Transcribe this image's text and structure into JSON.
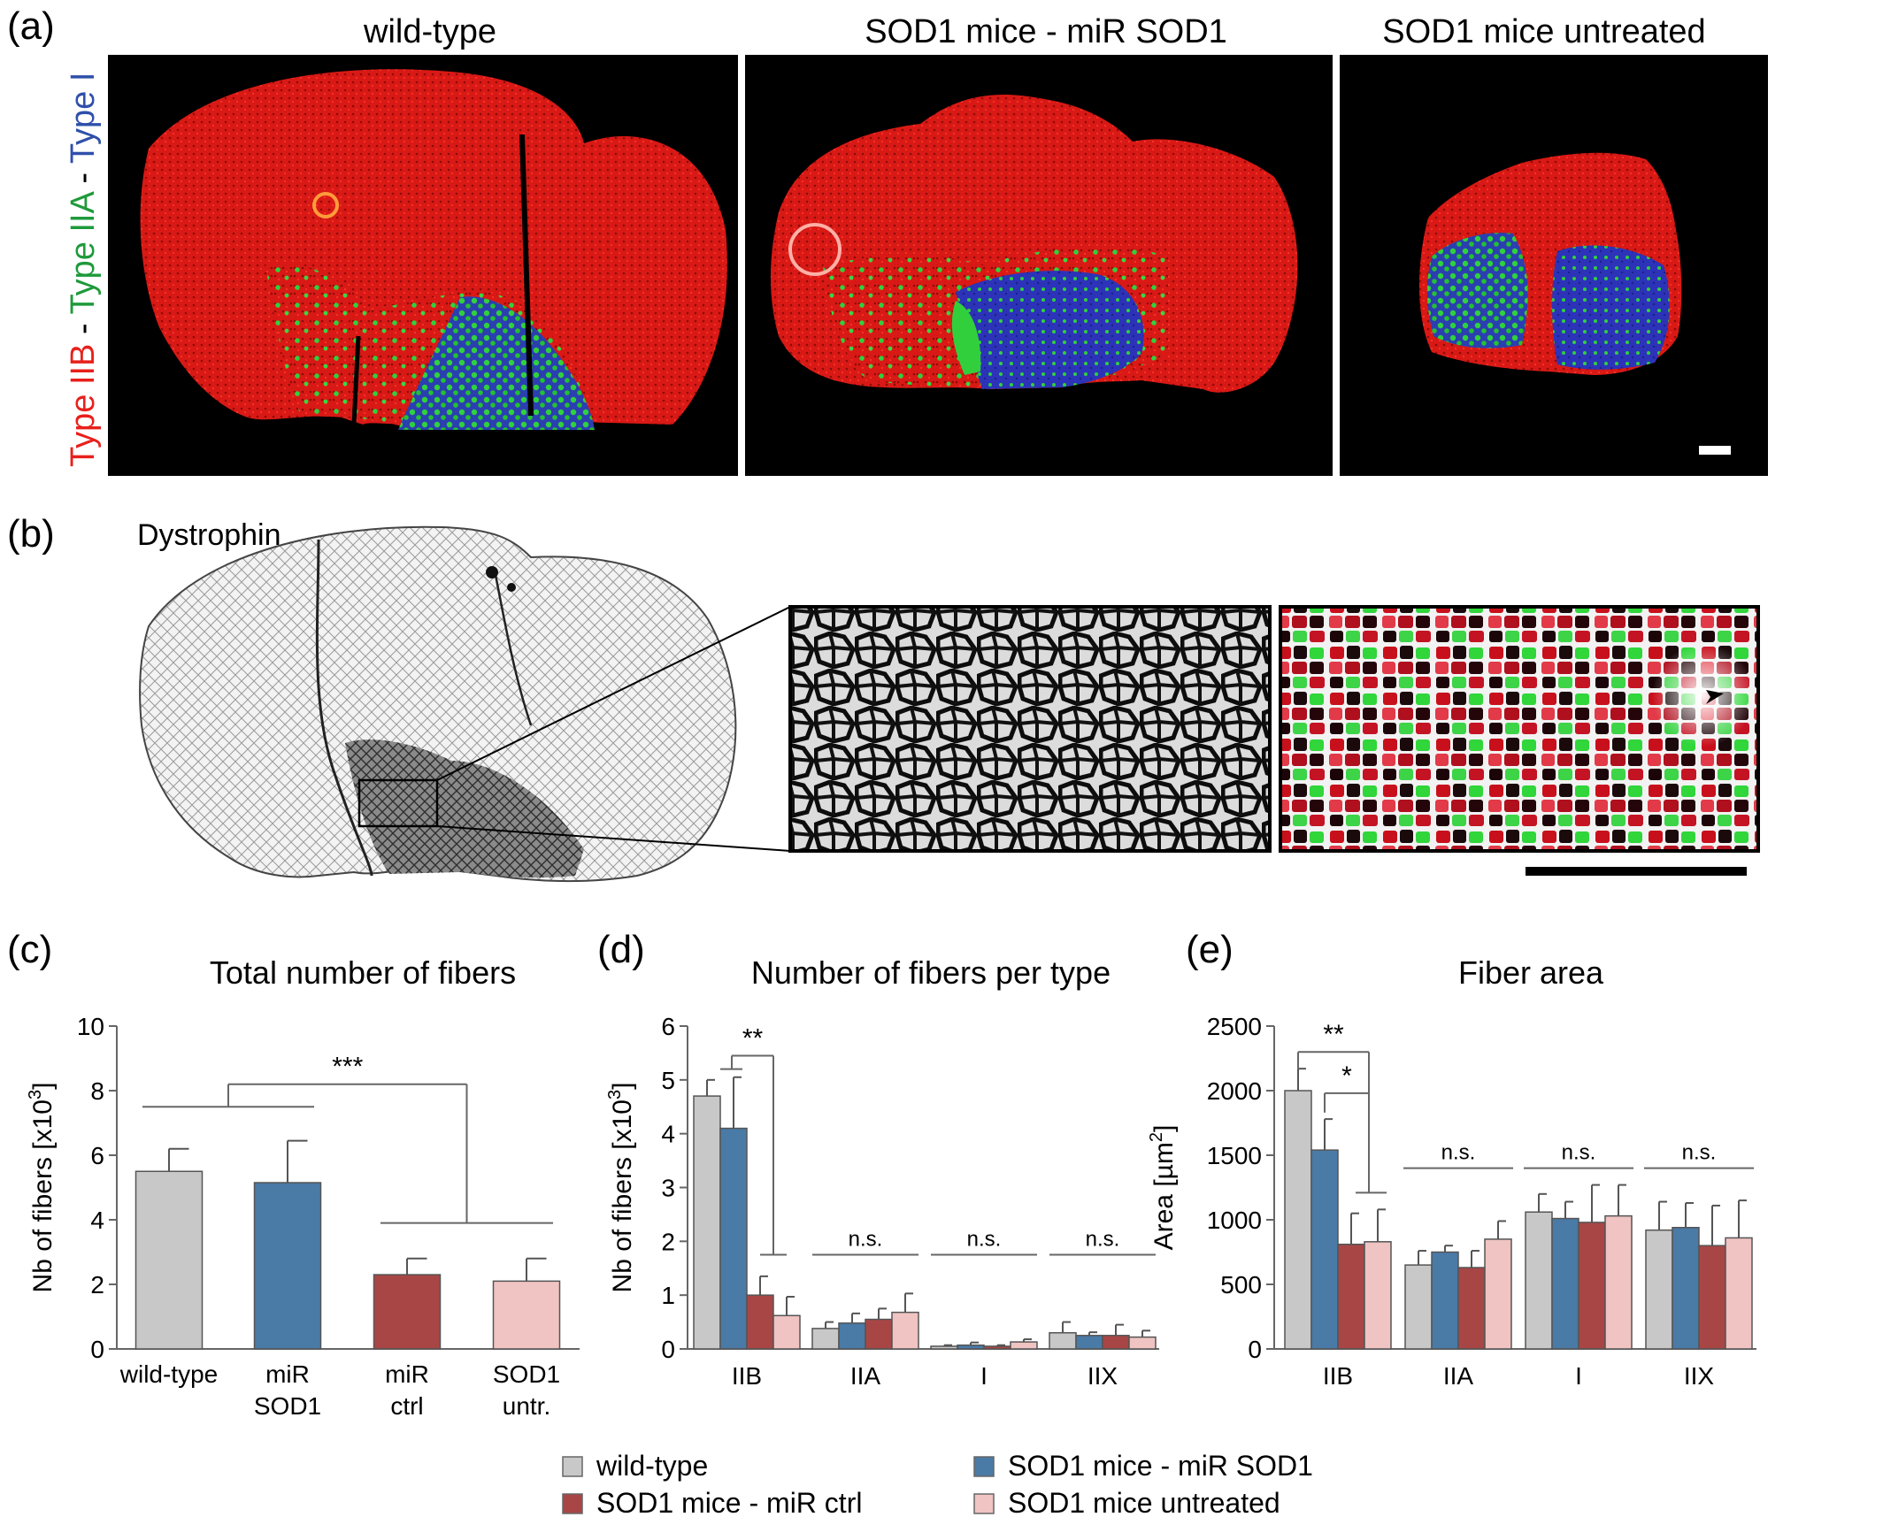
{
  "panels": {
    "a": {
      "label": "(a)",
      "side_label": {
        "iib": "Type IIB",
        "sep1": " - ",
        "iia": "Type IIA",
        "sep2": " - ",
        "i": "Type I"
      },
      "titles": [
        "wild-type",
        "SOD1 mice - miR SOD1",
        "SOD1 mice untreated"
      ]
    },
    "b": {
      "label": "(b)",
      "title": "Dystrophin"
    },
    "c": {
      "label": "(c)",
      "title": "Total number of fibers"
    },
    "d": {
      "label": "(d)",
      "title": "Number of fibers per type"
    },
    "e": {
      "label": "(e)",
      "title": "Fiber area"
    }
  },
  "colors": {
    "wild_type": "#c8c8c8",
    "mir_sod1": "#4a7aa6",
    "mir_ctrl": "#a84646",
    "untreated": "#efc4c2",
    "type_iib": "#e8201b",
    "type_iia": "#1e9a3a",
    "type_i": "#2f4faa"
  },
  "legend": [
    {
      "label": "wild-type",
      "color": "#c8c8c8"
    },
    {
      "label": "SOD1 mice - miR SOD1",
      "color": "#4a7aa6"
    },
    {
      "label": "SOD1 mice - miR ctrl",
      "color": "#a84646"
    },
    {
      "label": "SOD1 mice untreated",
      "color": "#efc4c2"
    }
  ],
  "chart_data": [
    {
      "id": "c",
      "type": "bar",
      "title": "Total number of fibers",
      "ylabel": "Nb of fibers [x10",
      "ylabel_sup": "3",
      "ylabel_end": "]",
      "ylim": [
        0,
        10
      ],
      "yticks": [
        "0",
        "2",
        "4",
        "6",
        "8",
        "10"
      ],
      "categories": [
        [
          "wild-type"
        ],
        [
          "miR",
          "SOD1"
        ],
        [
          "miR",
          "ctrl"
        ],
        [
          "SOD1",
          "untr."
        ]
      ],
      "values": [
        5.5,
        5.15,
        2.3,
        2.1
      ],
      "errors": [
        0.7,
        1.3,
        0.5,
        0.7
      ],
      "significance": "***"
    },
    {
      "id": "d",
      "type": "bar",
      "title": "Number of fibers per type",
      "ylabel": "Nb of fibers [x10",
      "ylabel_sup": "3",
      "ylabel_end": "]",
      "ylim": [
        0,
        6
      ],
      "yticks": [
        "0",
        "1",
        "2",
        "3",
        "4",
        "5",
        "6"
      ],
      "categories": [
        "IIB",
        "IIA",
        "I",
        "IIX"
      ],
      "series": [
        {
          "name": "wild-type",
          "values": [
            4.7,
            0.38,
            0.05,
            0.3
          ],
          "errors": [
            0.3,
            0.12,
            0.02,
            0.2
          ]
        },
        {
          "name": "SOD1 mice - miR SOD1",
          "values": [
            4.1,
            0.48,
            0.07,
            0.25
          ],
          "errors": [
            0.95,
            0.18,
            0.05,
            0.06
          ]
        },
        {
          "name": "SOD1 mice - miR ctrl",
          "values": [
            1.0,
            0.55,
            0.05,
            0.25
          ],
          "errors": [
            0.35,
            0.2,
            0.02,
            0.2
          ]
        },
        {
          "name": "SOD1 mice untreated",
          "values": [
            0.62,
            0.68,
            0.13,
            0.22
          ],
          "errors": [
            0.35,
            0.35,
            0.05,
            0.12
          ]
        }
      ],
      "significance": [
        "**",
        "n.s.",
        "n.s.",
        "n.s."
      ]
    },
    {
      "id": "e",
      "type": "bar",
      "title": "Fiber area",
      "ylabel": "Area [µm",
      "ylabel_sup": "2",
      "ylabel_end": "]",
      "ylim": [
        0,
        2500
      ],
      "yticks": [
        "0",
        "500",
        "1000",
        "1500",
        "2000",
        "2500"
      ],
      "categories": [
        "IIB",
        "IIA",
        "I",
        "IIX"
      ],
      "series": [
        {
          "name": "wild-type",
          "values": [
            2000,
            650,
            1060,
            920
          ],
          "errors": [
            170,
            110,
            140,
            220
          ]
        },
        {
          "name": "SOD1 mice - miR SOD1",
          "values": [
            1540,
            750,
            1010,
            940
          ],
          "errors": [
            240,
            50,
            130,
            190
          ]
        },
        {
          "name": "SOD1 mice - miR ctrl",
          "values": [
            810,
            630,
            980,
            800
          ],
          "errors": [
            240,
            130,
            290,
            310
          ]
        },
        {
          "name": "SOD1 mice untreated",
          "values": [
            830,
            850,
            1030,
            860
          ],
          "errors": [
            250,
            140,
            240,
            290
          ]
        }
      ],
      "significance": [
        "**",
        "*",
        "n.s.",
        "n.s.",
        "n.s."
      ]
    }
  ]
}
